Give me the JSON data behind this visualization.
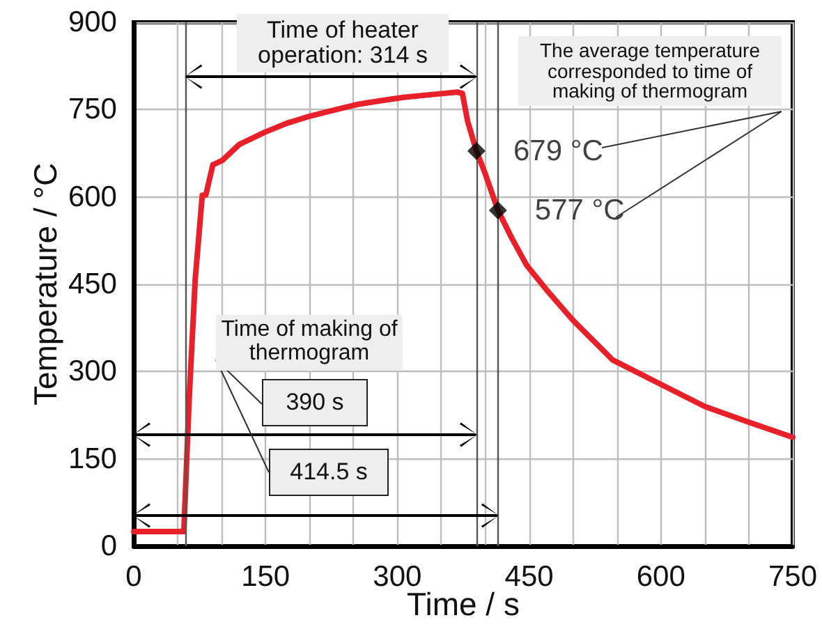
{
  "chart_data": {
    "type": "line",
    "xlabel": "Time / s",
    "ylabel": "Temperature / °C",
    "xlim": [
      0,
      750
    ],
    "ylim": [
      0,
      900
    ],
    "xticks": [
      0,
      {
        "value": 50,
        "label": null
      },
      {
        "value": 100,
        "label": null
      },
      150,
      {
        "value": 200,
        "label": null
      },
      {
        "value": 250,
        "label": null
      },
      300,
      {
        "value": 350,
        "label": null
      },
      {
        "value": 400,
        "label": null
      },
      450,
      {
        "value": 500,
        "label": null
      },
      {
        "value": 550,
        "label": null
      },
      600,
      {
        "value": 650,
        "label": null
      },
      {
        "value": 700,
        "label": null
      },
      750
    ],
    "yticks": [
      0,
      150,
      300,
      450,
      600,
      750,
      900
    ],
    "grid": true,
    "series": [
      {
        "type": "line",
        "color": "#e8202a",
        "marker": "none",
        "line_style": "solid",
        "x": [
          0,
          57,
          63,
          70,
          78,
          82,
          90,
          101,
          120,
          149,
          175,
          201,
          230,
          255,
          280,
          307,
          340,
          368,
          374,
          380,
          390,
          400,
          414.5,
          430,
          447,
          470,
          500,
          545,
          600,
          650,
          700,
          750
        ],
        "values": [
          25,
          25,
          250,
          459,
          603,
          603,
          655,
          663,
          690,
          711,
          727,
          739,
          750,
          759,
          765,
          771,
          776,
          780,
          778,
          730,
          679,
          640,
          577,
          530,
          483,
          440,
          388,
          320,
          278,
          240,
          213,
          187
        ]
      },
      {
        "type": "scatter",
        "color": "#000000",
        "marker": "diamond",
        "x": [
          390,
          414.5
        ],
        "values": [
          679,
          577
        ],
        "value_labels": [
          "679 °C",
          "577 °C"
        ]
      }
    ],
    "ref_lines": [
      {
        "axis": "x",
        "value": 59,
        "color": "#555555"
      },
      {
        "axis": "x",
        "value": 390,
        "color": "#555555"
      },
      {
        "axis": "x",
        "value": 414.5,
        "color": "#555555"
      }
    ],
    "annotations": [
      "Time of heater operation: 314 s",
      "Time of making of thermogram",
      "390 s",
      "414.5 s",
      "The average temperature corresponded to time of making of thermogram"
    ]
  }
}
